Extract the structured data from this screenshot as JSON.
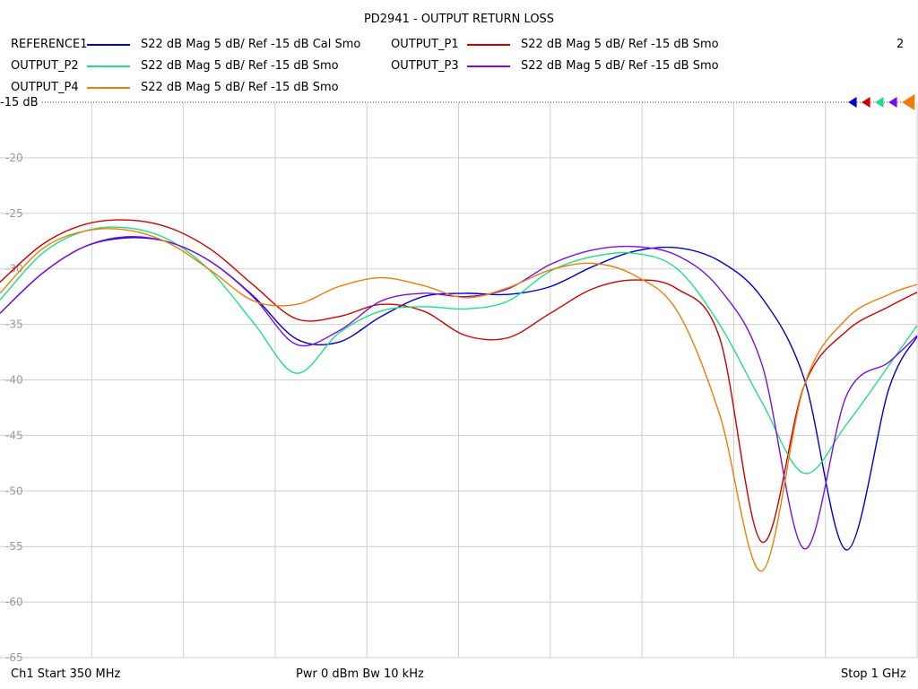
{
  "chart_data": {
    "type": "line",
    "title": "PD2941 - OUTPUT RETURN LOSS",
    "channel_number": "2",
    "ref_label": "-15 dB",
    "xlim_mhz": [
      350,
      1000
    ],
    "ylim": [
      -65,
      -15
    ],
    "grid": true,
    "y_tick_labels": [
      "-20",
      "-25",
      "-30",
      "-35",
      "-40",
      "-45",
      "-50",
      "-55",
      "-60",
      "-65"
    ],
    "y_tick_values": [
      -20,
      -25,
      -30,
      -35,
      -40,
      -45,
      -50,
      -55,
      -60,
      -65
    ],
    "legend": [
      {
        "name": "REFERENCE1",
        "desc": "S22  dB Mag  5 dB/ Ref -15 dB  Cal Smo",
        "color": "#0000cc"
      },
      {
        "name": "OUTPUT_P1",
        "desc": "S22  dB Mag  5 dB/ Ref -15 dB  Smo",
        "color": "#cc0000"
      },
      {
        "name": "OUTPUT_P2",
        "desc": "S22  dB Mag  5 dB/ Ref -15 dB  Smo",
        "color": "#22dd88"
      },
      {
        "name": "OUTPUT_P3",
        "desc": "S22  dB Mag  5 dB/ Ref -15 dB  Smo",
        "color": "#7a10dd"
      },
      {
        "name": "OUTPUT_P4",
        "desc": "S22  dB Mag  5 dB/ Ref -15 dB  Smo",
        "color": "#e87f0a"
      }
    ],
    "series": [
      {
        "name": "REFERENCE1",
        "color": "#0000cc",
        "x": [
          350,
          380,
          410,
          440,
          470,
          500,
          530,
          560,
          590,
          620,
          650,
          680,
          710,
          740,
          770,
          800,
          830,
          860,
          890,
          920,
          950,
          980,
          1000
        ],
        "y": [
          -34,
          -30.4,
          -28,
          -27.2,
          -27.6,
          -29.4,
          -32.5,
          -36.3,
          -36.6,
          -34.3,
          -32.5,
          -32.2,
          -32.3,
          -31.6,
          -29.8,
          -28.4,
          -28.1,
          -29.3,
          -32.6,
          -39.9,
          -55.3,
          -40.8,
          -36.1
        ]
      },
      {
        "name": "OUTPUT_P1",
        "color": "#cc0000",
        "x": [
          350,
          380,
          410,
          440,
          470,
          500,
          530,
          560,
          590,
          620,
          650,
          680,
          710,
          740,
          770,
          800,
          830,
          860,
          890,
          920,
          950,
          980,
          1000
        ],
        "y": [
          -31.2,
          -27.8,
          -26,
          -25.6,
          -26.3,
          -28.3,
          -31.5,
          -34.5,
          -34.3,
          -33.2,
          -33.8,
          -36,
          -36.2,
          -34,
          -31.8,
          -31,
          -31.8,
          -36.2,
          -54.6,
          -40.5,
          -35.6,
          -33.4,
          -32.1
        ]
      },
      {
        "name": "OUTPUT_P2",
        "color": "#22dd88",
        "x": [
          350,
          380,
          410,
          440,
          470,
          500,
          530,
          560,
          590,
          620,
          650,
          680,
          710,
          740,
          770,
          800,
          830,
          860,
          890,
          920,
          950,
          980,
          1000
        ],
        "y": [
          -32.8,
          -28.6,
          -26.6,
          -26.3,
          -27.4,
          -30.3,
          -34.9,
          -39.4,
          -35.8,
          -33.8,
          -33.4,
          -33.6,
          -32.9,
          -30.2,
          -28.9,
          -28.6,
          -30,
          -35,
          -42,
          -48.4,
          -44,
          -38.7,
          -35.1
        ]
      },
      {
        "name": "OUTPUT_P3",
        "color": "#7a10dd",
        "x": [
          350,
          380,
          410,
          440,
          470,
          500,
          530,
          560,
          590,
          620,
          650,
          680,
          710,
          740,
          770,
          800,
          830,
          860,
          890,
          920,
          950,
          980,
          1000
        ],
        "y": [
          -34,
          -30.4,
          -28,
          -27.1,
          -27.6,
          -29.4,
          -32.6,
          -36.8,
          -35.6,
          -32.9,
          -32.2,
          -32.5,
          -31.8,
          -29.6,
          -28.3,
          -28,
          -28.8,
          -31.8,
          -38.6,
          -55.2,
          -41.4,
          -38.4,
          -36
        ]
      },
      {
        "name": "OUTPUT_P4",
        "color": "#e87f0a",
        "x": [
          350,
          380,
          410,
          440,
          470,
          500,
          530,
          560,
          590,
          620,
          650,
          680,
          710,
          740,
          770,
          800,
          830,
          860,
          890,
          920,
          950,
          980,
          1000
        ],
        "y": [
          -32.2,
          -28.2,
          -26.6,
          -26.5,
          -27.7,
          -30.2,
          -32.9,
          -33.2,
          -31.6,
          -30.8,
          -31.5,
          -32.6,
          -31.7,
          -30.1,
          -29.5,
          -30.6,
          -33.8,
          -43.1,
          -57.2,
          -40.5,
          -34.5,
          -32.3,
          -31.4
        ]
      }
    ]
  },
  "footer": {
    "left": "Ch1  Start  350 MHz",
    "center": "Pwr  0 dBm  Bw  10 kHz",
    "right": "Stop  1 GHz"
  }
}
